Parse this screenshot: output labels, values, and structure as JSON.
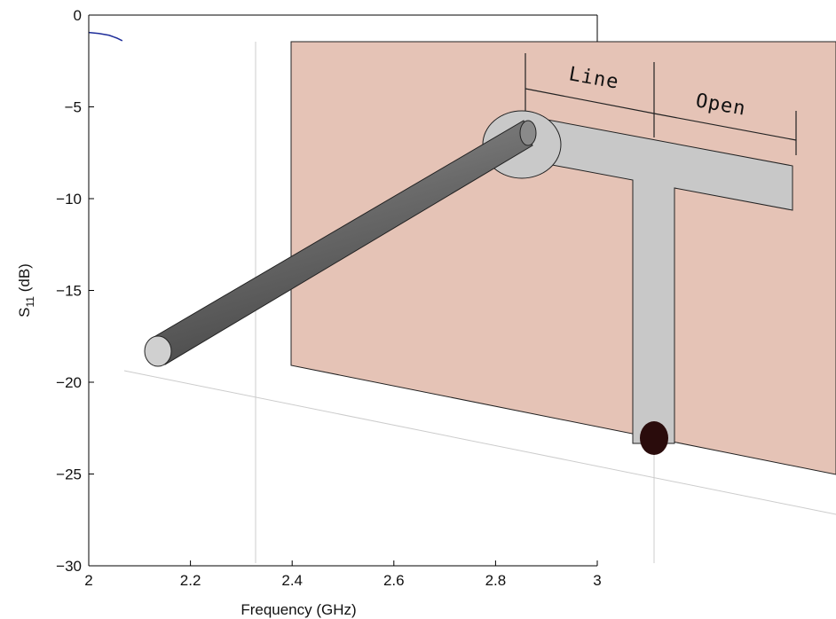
{
  "chart_data": {
    "type": "line",
    "xlabel": "Frequency (GHz)",
    "ylabel_parts": [
      "S",
      "11",
      " (dB)"
    ],
    "x": [
      2.0,
      2.02,
      2.04,
      2.055,
      2.066
    ],
    "series": [
      {
        "color": "#1f2e9a",
        "values": [
          -0.95,
          -1.0,
          -1.1,
          -1.25,
          -1.4
        ]
      }
    ],
    "xlim": [
      2,
      3
    ],
    "xticks": [
      2,
      2.2,
      2.4,
      2.6,
      2.8,
      3
    ],
    "ylim": [
      -30,
      0
    ],
    "yticks": [
      {
        "value": 0,
        "label": "0"
      },
      {
        "value": -5,
        "label": "−5"
      },
      {
        "value": -10,
        "label": "−10"
      },
      {
        "value": -15,
        "label": "−15"
      },
      {
        "value": -20,
        "label": "−20"
      },
      {
        "value": -25,
        "label": "−25"
      },
      {
        "value": -30,
        "label": "−30"
      }
    ],
    "grid": false,
    "annotations": [
      "Line",
      "Open"
    ]
  }
}
